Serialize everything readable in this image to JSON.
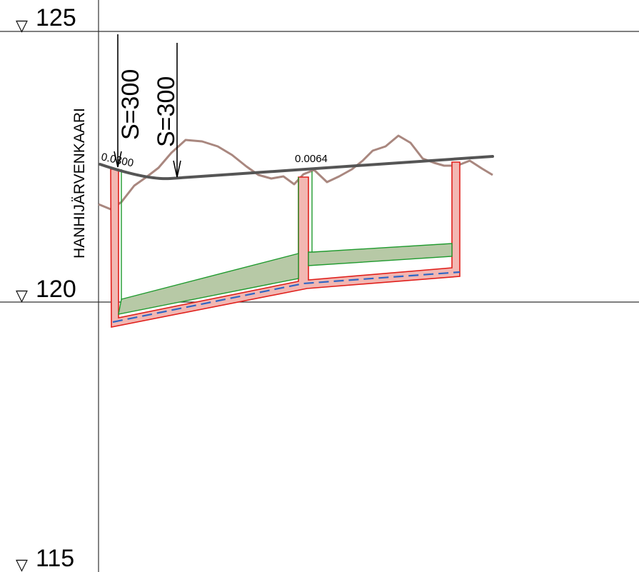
{
  "elevations": {
    "top": "125",
    "middle": "120",
    "bottom": "115",
    "marker_glyph": "▽"
  },
  "street_name": "HANHIJÄRVENKAARI",
  "curve_labels": [
    "S=300",
    "S=300"
  ],
  "slope_labels": [
    "0.0300",
    "0.0064"
  ],
  "colors": {
    "grid": "#333333",
    "road_profile": "#555555",
    "terrain": "#a9877f",
    "pipe_outline": "#e0201c",
    "pipe_fill": "#f2b7b2",
    "trench_outline": "#1f9a2e",
    "trench_fill": "#b7c9a6",
    "water_line": "#2f66c5"
  }
}
